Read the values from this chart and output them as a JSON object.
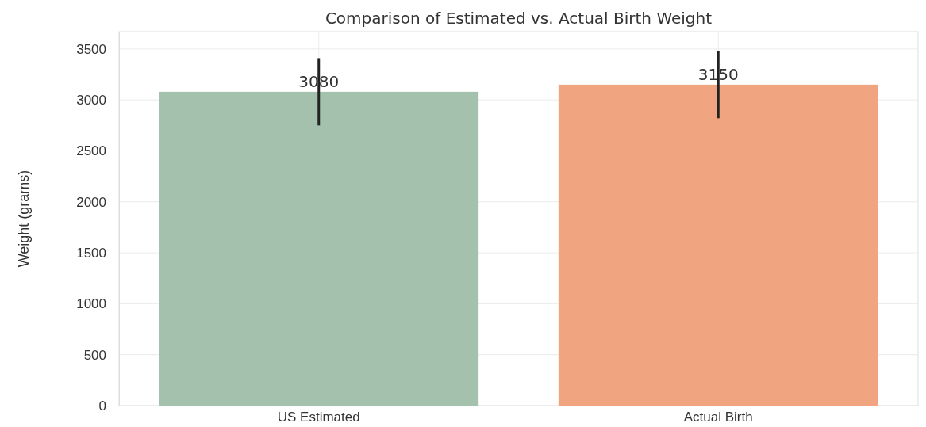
{
  "chart_data": {
    "type": "bar",
    "title": "Comparison of Estimated vs. Actual Birth Weight",
    "ylabel": "Weight (grams)",
    "categories": [
      "US Estimated",
      "Actual Birth"
    ],
    "values": [
      3080,
      3150
    ],
    "colors": [
      "#a3c1ad",
      "#f0a47f"
    ],
    "errors": [
      330,
      330
    ],
    "data_labels": true,
    "ylim": [
      0,
      3670
    ],
    "yticks": [
      0,
      500,
      1000,
      1500,
      2000,
      2500,
      3000,
      3500
    ],
    "grid": true
  }
}
